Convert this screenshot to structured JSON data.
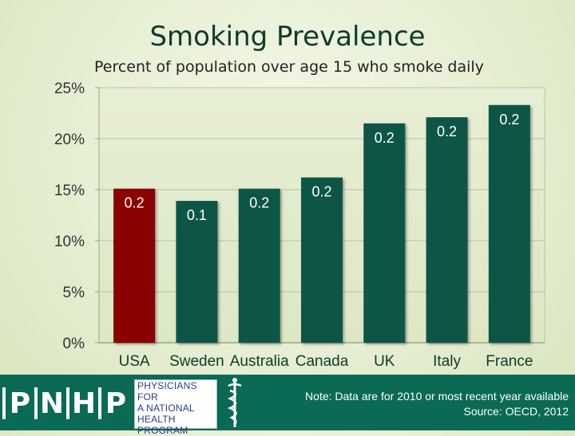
{
  "title": "Smoking Prevalence",
  "subtitle": "Percent of population over age 15 who smoke daily",
  "chart_data": {
    "type": "bar",
    "categories": [
      "USA",
      "Sweden",
      "Australia",
      "Canada",
      "UK",
      "Italy",
      "France"
    ],
    "values": [
      15.1,
      13.9,
      15.1,
      16.2,
      21.5,
      22.1,
      23.3
    ],
    "data_labels": [
      "0.2",
      "0.1",
      "0.2",
      "0.2",
      "0.2",
      "0.2",
      "0.2"
    ],
    "ylim": [
      0,
      25
    ],
    "yticks": [
      0,
      5,
      10,
      15,
      20,
      25
    ],
    "ytick_labels": [
      "0%",
      "5%",
      "10%",
      "15%",
      "20%",
      "25%"
    ],
    "grid": true,
    "legend": "none",
    "colors": {
      "highlight": "#8b0000",
      "default": "#0b5747"
    },
    "highlight_index": 0
  },
  "footer": {
    "logo_letters": [
      "P",
      "N",
      "H",
      "P"
    ],
    "org_lines": [
      "PHYSICIANS FOR",
      "A NATIONAL",
      "HEALTH",
      "PROGRAM"
    ],
    "note": "Note: Data are for 2010 or most recent year available",
    "source": "Source: OECD, 2012",
    "caduceus_icon": "caduceus-icon"
  }
}
